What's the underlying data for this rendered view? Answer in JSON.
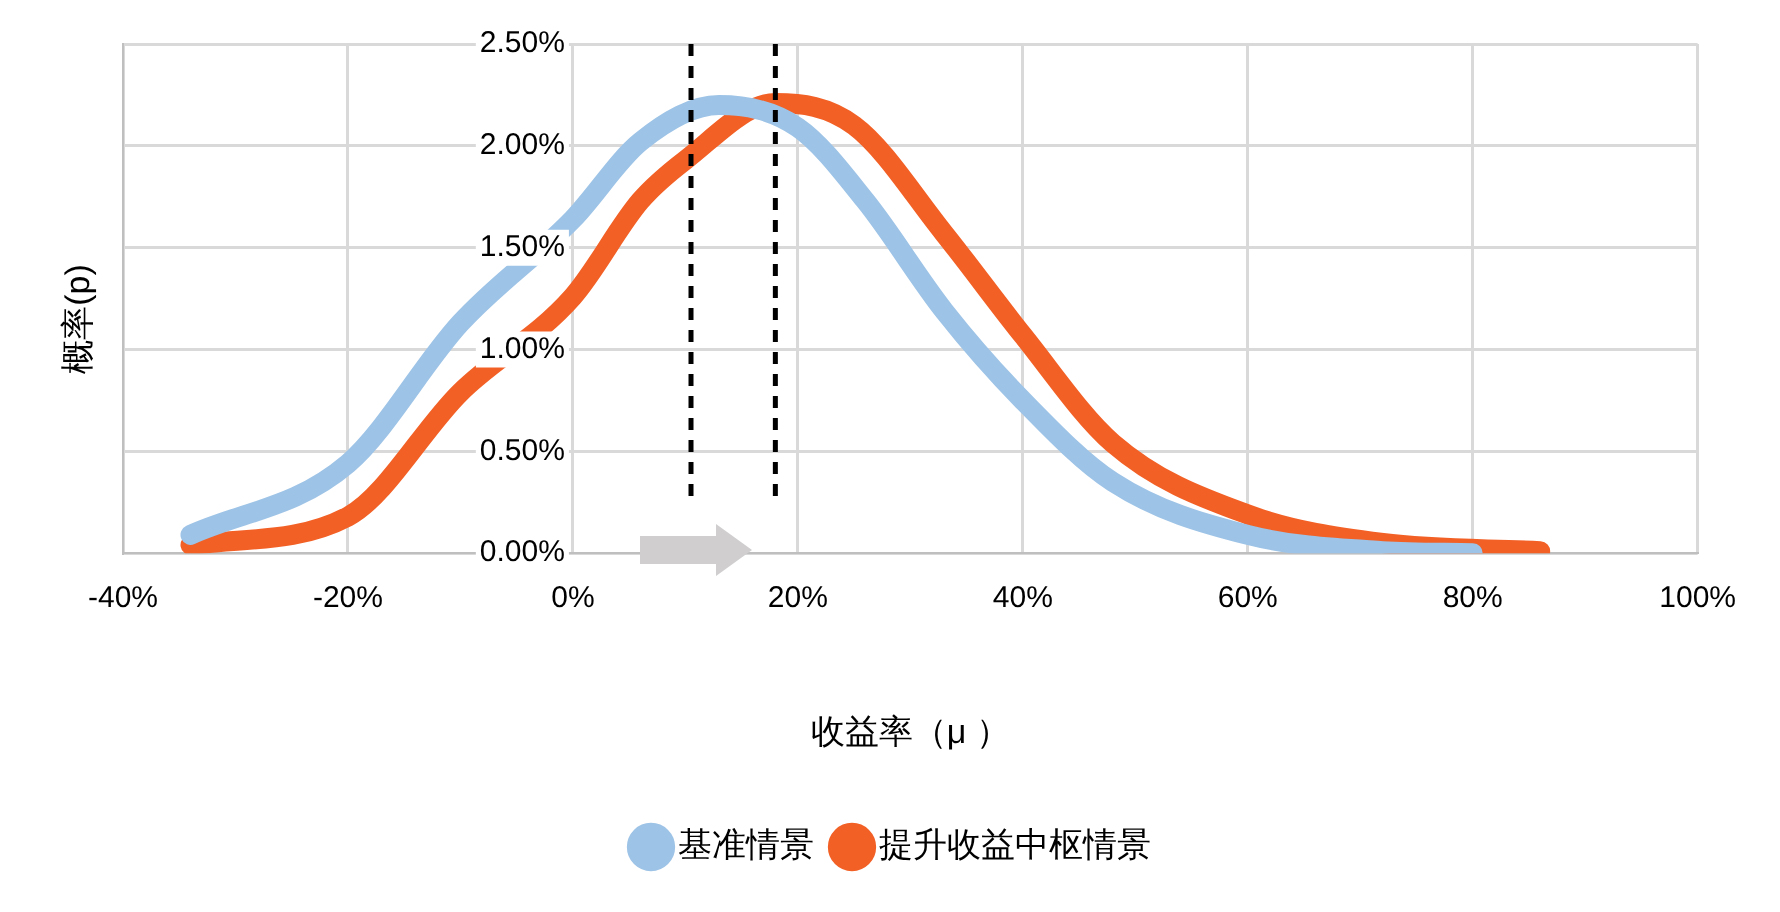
{
  "chart_data": {
    "type": "line",
    "xlabel": "收益率（μ ）",
    "ylabel": "概率(p)",
    "xlim": [
      -40,
      100
    ],
    "ylim": [
      0,
      2.5
    ],
    "xticks": [
      {
        "value": -40,
        "label": "-40%"
      },
      {
        "value": -20,
        "label": "-20%"
      },
      {
        "value": 0,
        "label": "0%"
      },
      {
        "value": 20,
        "label": "20%"
      },
      {
        "value": 40,
        "label": "40%"
      },
      {
        "value": 60,
        "label": "60%"
      },
      {
        "value": 80,
        "label": "80%"
      },
      {
        "value": 100,
        "label": "100%"
      }
    ],
    "yticks": [
      {
        "value": 0,
        "label": "0.00%"
      },
      {
        "value": 0.5,
        "label": "0.50%"
      },
      {
        "value": 1,
        "label": "1.00%"
      },
      {
        "value": 1.5,
        "label": "1.50%"
      },
      {
        "value": 2,
        "label": "2.00%"
      },
      {
        "value": 2.5,
        "label": "2.50%"
      }
    ],
    "grid": true,
    "legend": "bottom",
    "marker": "none",
    "line_style": "solid",
    "series": [
      {
        "name": "基准情景",
        "color": "#9dc3e6",
        "x": [
          -34,
          -20,
          -10,
          0,
          6,
          13,
          20,
          26,
          33,
          40,
          48,
          60,
          72,
          80
        ],
        "values": [
          0.09,
          0.44,
          1.13,
          1.64,
          2.02,
          2.2,
          2.09,
          1.73,
          1.19,
          0.75,
          0.35,
          0.09,
          0.01,
          0
        ]
      },
      {
        "name": "提升收益中枢情景",
        "color": "#f26026",
        "x": [
          -34,
          -20,
          -10,
          0,
          6,
          10,
          18,
          25,
          33,
          40,
          48,
          60,
          72,
          86
        ],
        "values": [
          0.04,
          0.18,
          0.79,
          1.26,
          1.73,
          1.93,
          2.21,
          2.1,
          1.57,
          1.07,
          0.54,
          0.19,
          0.05,
          0.01
        ]
      }
    ],
    "ref_lines": [
      {
        "axis": "x",
        "value": 10.5,
        "color": "#000000",
        "line_style": "dashed"
      },
      {
        "axis": "x",
        "value": 18,
        "color": "#000000",
        "line_style": "dashed"
      }
    ]
  }
}
